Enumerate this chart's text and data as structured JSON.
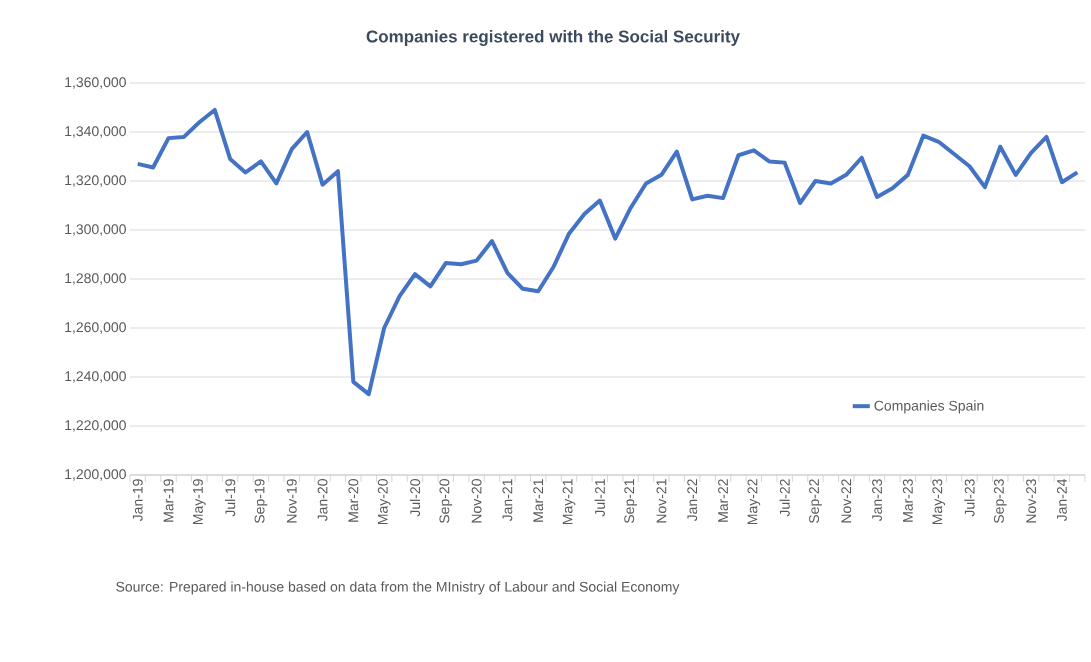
{
  "chart_data": {
    "type": "line",
    "title": "Companies registered with the Social Security",
    "categories": [
      "Jan-19",
      null,
      "Mar-19",
      null,
      "May-19",
      null,
      "Jul-19",
      null,
      "Sep-19",
      null,
      "Nov-19",
      null,
      "Jan-20",
      null,
      "Mar-20",
      null,
      "May-20",
      null,
      "Jul-20",
      null,
      "Sep-20",
      null,
      "Nov-20",
      null,
      "Jan-21",
      null,
      "Mar-21",
      null,
      "May-21",
      null,
      "Jul-21",
      null,
      "Sep-21",
      null,
      "Nov-21",
      null,
      "Jan-22",
      null,
      "Mar-22",
      null,
      "May-22",
      null,
      "Jul-22",
      null,
      "Sep-22",
      null,
      "Nov-22",
      null,
      "Jan-23",
      null,
      "Mar-23",
      null,
      "May-23",
      null,
      "Jul-23",
      null,
      "Sep-23",
      null,
      "Nov-23",
      null,
      "Jan-24",
      null
    ],
    "series": [
      {
        "name": "Companies Spain",
        "color": "#4472c4",
        "values": [
          1327000,
          1325500,
          1337500,
          1338000,
          1344000,
          1349000,
          1329000,
          1323500,
          1328000,
          1319000,
          1333000,
          1340000,
          1318500,
          1324000,
          1238000,
          1233000,
          1260000,
          1273000,
          1282000,
          1277000,
          1286500,
          1286000,
          1287500,
          1295500,
          1282500,
          1276000,
          1275000,
          1285000,
          1298500,
          1306500,
          1312000,
          1296500,
          1309000,
          1319000,
          1322500,
          1332000,
          1312500,
          1314000,
          1313000,
          1330500,
          1332500,
          1328000,
          1327500,
          1311000,
          1320000,
          1319000,
          1322500,
          1329500,
          1313500,
          1317000,
          1322500,
          1338500,
          1336000,
          1331000,
          1326000,
          1317500,
          1334000,
          1322500,
          1331500,
          1338000,
          1319500,
          1323500
        ]
      }
    ],
    "ylim": [
      1200000,
      1360000
    ],
    "yticks": [
      {
        "value": 1200000,
        "label": "1,200,000"
      },
      {
        "value": 1220000,
        "label": "1,220,000"
      },
      {
        "value": 1240000,
        "label": "1,240,000"
      },
      {
        "value": 1260000,
        "label": "1,260,000"
      },
      {
        "value": 1280000,
        "label": "1,280,000"
      },
      {
        "value": 1300000,
        "label": "1,300,000"
      },
      {
        "value": 1320000,
        "label": "1,320,000"
      },
      {
        "value": 1340000,
        "label": "1,340,000"
      },
      {
        "value": 1360000,
        "label": "1,360,000"
      }
    ],
    "grid": "y",
    "legend": "bottom right",
    "marker": "none",
    "line_style": "solid",
    "annotations": [
      "Source: Prepared in-house based on data from the MInistry of Labour and Social Economy"
    ]
  }
}
